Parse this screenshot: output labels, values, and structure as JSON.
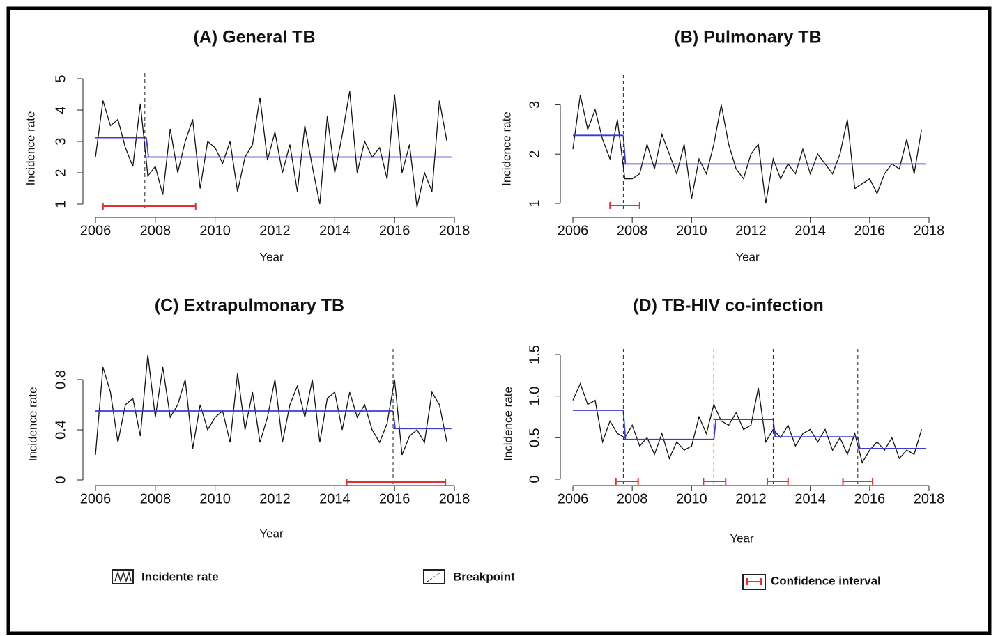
{
  "chart_data": [
    {
      "type": "line",
      "title": "(A) General TB",
      "xlabel": "Year",
      "ylabel": "Incidence rate",
      "xlim": [
        2006,
        2018
      ],
      "xticks": [
        2006,
        2008,
        2010,
        2012,
        2014,
        2016,
        2018
      ],
      "ylim": [
        1,
        5
      ],
      "yticks": [
        1,
        2,
        3,
        4,
        5
      ],
      "x": [
        2006,
        2006.25,
        2006.5,
        2006.75,
        2007,
        2007.25,
        2007.5,
        2007.75,
        2008,
        2008.25,
        2008.5,
        2008.75,
        2009,
        2009.25,
        2009.5,
        2009.75,
        2010,
        2010.25,
        2010.5,
        2010.75,
        2011,
        2011.25,
        2011.5,
        2011.75,
        2012,
        2012.25,
        2012.5,
        2012.75,
        2013,
        2013.25,
        2013.5,
        2013.75,
        2014,
        2014.25,
        2014.5,
        2014.75,
        2015,
        2015.25,
        2015.5,
        2015.75,
        2016,
        2016.25,
        2016.5,
        2016.75,
        2017,
        2017.25,
        2017.5,
        2017.75
      ],
      "series": [
        {
          "color": "#111111",
          "values": [
            2.5,
            4.3,
            3.5,
            3.7,
            2.8,
            2.2,
            4.2,
            1.9,
            2.2,
            1.3,
            3.4,
            2.0,
            3.0,
            3.7,
            1.5,
            3.0,
            2.8,
            2.3,
            3.0,
            1.4,
            2.5,
            2.9,
            4.4,
            2.4,
            3.3,
            2.0,
            2.9,
            1.4,
            3.5,
            2.2,
            1.0,
            3.8,
            2.0,
            3.2,
            4.6,
            2.0,
            3.0,
            2.5,
            2.8,
            1.8,
            4.5,
            2.0,
            2.9,
            0.9,
            2.0,
            1.4,
            4.3,
            3.0
          ]
        }
      ],
      "segments": [
        {
          "start": 2006,
          "end": 2007.7,
          "level": 3.12
        },
        {
          "start": 2007.7,
          "end": 2017.9,
          "level": 2.5
        }
      ],
      "segment_color": "#3b3bd0",
      "breakpoints": [
        2007.65
      ],
      "confidence_intervals": [
        [
          2006.25,
          2009.35
        ]
      ],
      "ci_color": "#e03030"
    },
    {
      "type": "line",
      "title": "(B) Pulmonary TB",
      "xlabel": "Year",
      "ylabel": "Incidence rate",
      "xlim": [
        2006,
        2018
      ],
      "xticks": [
        2006,
        2008,
        2010,
        2012,
        2014,
        2016,
        2018
      ],
      "ylim": [
        1,
        3.5
      ],
      "yticks": [
        1,
        2,
        3
      ],
      "x": [
        2006,
        2006.25,
        2006.5,
        2006.75,
        2007,
        2007.25,
        2007.5,
        2007.75,
        2008,
        2008.25,
        2008.5,
        2008.75,
        2009,
        2009.25,
        2009.5,
        2009.75,
        2010,
        2010.25,
        2010.5,
        2010.75,
        2011,
        2011.25,
        2011.5,
        2011.75,
        2012,
        2012.25,
        2012.5,
        2012.75,
        2013,
        2013.25,
        2013.5,
        2013.75,
        2014,
        2014.25,
        2014.5,
        2014.75,
        2015,
        2015.25,
        2015.5,
        2015.75,
        2016,
        2016.25,
        2016.5,
        2016.75,
        2017,
        2017.25,
        2017.5,
        2017.75
      ],
      "series": [
        {
          "color": "#111111",
          "values": [
            2.1,
            3.2,
            2.5,
            2.9,
            2.3,
            1.9,
            2.7,
            1.5,
            1.5,
            1.6,
            2.2,
            1.7,
            2.4,
            2.0,
            1.6,
            2.2,
            1.1,
            1.9,
            1.6,
            2.2,
            3.0,
            2.2,
            1.7,
            1.5,
            2.0,
            2.2,
            1.0,
            1.9,
            1.5,
            1.8,
            1.6,
            2.1,
            1.6,
            2.0,
            1.8,
            1.6,
            2.0,
            2.7,
            1.3,
            1.4,
            1.5,
            1.2,
            1.6,
            1.8,
            1.7,
            2.3,
            1.6,
            2.5
          ]
        }
      ],
      "segments": [
        {
          "start": 2006,
          "end": 2007.7,
          "level": 2.38
        },
        {
          "start": 2007.7,
          "end": 2017.9,
          "level": 1.8
        }
      ],
      "segment_color": "#3b3bd0",
      "breakpoints": [
        2007.7
      ],
      "confidence_intervals": [
        [
          2007.25,
          2008.25
        ]
      ],
      "ci_color": "#e03030"
    },
    {
      "type": "line",
      "title": "(C) Extrapulmonary TB",
      "xlabel": "Year",
      "ylabel": "Incidence rate",
      "xlim": [
        2006,
        2018
      ],
      "xticks": [
        2006,
        2008,
        2010,
        2012,
        2014,
        2016,
        2018
      ],
      "ylim": [
        0,
        1
      ],
      "yticks": [
        0,
        0.4,
        0.8
      ],
      "x": [
        2006,
        2006.25,
        2006.5,
        2006.75,
        2007,
        2007.25,
        2007.5,
        2007.75,
        2008,
        2008.25,
        2008.5,
        2008.75,
        2009,
        2009.25,
        2009.5,
        2009.75,
        2010,
        2010.25,
        2010.5,
        2010.75,
        2011,
        2011.25,
        2011.5,
        2011.75,
        2012,
        2012.25,
        2012.5,
        2012.75,
        2013,
        2013.25,
        2013.5,
        2013.75,
        2014,
        2014.25,
        2014.5,
        2014.75,
        2015,
        2015.25,
        2015.5,
        2015.75,
        2016,
        2016.25,
        2016.5,
        2016.75,
        2017,
        2017.25,
        2017.5,
        2017.75
      ],
      "series": [
        {
          "color": "#111111",
          "values": [
            0.2,
            0.9,
            0.7,
            0.3,
            0.6,
            0.65,
            0.35,
            1.0,
            0.5,
            0.9,
            0.5,
            0.6,
            0.8,
            0.25,
            0.6,
            0.4,
            0.5,
            0.55,
            0.3,
            0.85,
            0.4,
            0.7,
            0.3,
            0.5,
            0.8,
            0.3,
            0.6,
            0.75,
            0.5,
            0.8,
            0.3,
            0.65,
            0.7,
            0.4,
            0.7,
            0.5,
            0.6,
            0.4,
            0.3,
            0.45,
            0.8,
            0.2,
            0.35,
            0.4,
            0.3,
            0.7,
            0.6,
            0.3
          ]
        }
      ],
      "segments": [
        {
          "start": 2006,
          "end": 2015.95,
          "level": 0.55
        },
        {
          "start": 2015.95,
          "end": 2017.9,
          "level": 0.41
        }
      ],
      "segment_color": "#3b3bd0",
      "breakpoints": [
        2015.95
      ],
      "confidence_intervals": [
        [
          2014.4,
          2017.7
        ]
      ],
      "ci_color": "#e03030"
    },
    {
      "type": "line",
      "title": "(D) TB-HIV co-infection",
      "xlabel": "Year",
      "ylabel": "Incidence rate",
      "xlim": [
        2006,
        2018
      ],
      "xticks": [
        2006,
        2008,
        2010,
        2012,
        2014,
        2016,
        2018
      ],
      "ylim": [
        0,
        1.5
      ],
      "yticks": [
        0,
        0.5,
        {
          "value": 1,
          "label": "1.0"
        },
        1.5
      ],
      "x": [
        2006,
        2006.25,
        2006.5,
        2006.75,
        2007,
        2007.25,
        2007.5,
        2007.75,
        2008,
        2008.25,
        2008.5,
        2008.75,
        2009,
        2009.25,
        2009.5,
        2009.75,
        2010,
        2010.25,
        2010.5,
        2010.75,
        2011,
        2011.25,
        2011.5,
        2011.75,
        2012,
        2012.25,
        2012.5,
        2012.75,
        2013,
        2013.25,
        2013.5,
        2013.75,
        2014,
        2014.25,
        2014.5,
        2014.75,
        2015,
        2015.25,
        2015.5,
        2015.75,
        2016,
        2016.25,
        2016.5,
        2016.75,
        2017,
        2017.25,
        2017.5,
        2017.75
      ],
      "series": [
        {
          "color": "#111111",
          "values": [
            0.95,
            1.15,
            0.9,
            0.95,
            0.45,
            0.7,
            0.55,
            0.5,
            0.65,
            0.4,
            0.5,
            0.3,
            0.55,
            0.25,
            0.45,
            0.35,
            0.4,
            0.75,
            0.55,
            0.9,
            0.7,
            0.65,
            0.8,
            0.6,
            0.65,
            1.1,
            0.45,
            0.6,
            0.5,
            0.65,
            0.4,
            0.55,
            0.6,
            0.45,
            0.6,
            0.35,
            0.5,
            0.3,
            0.55,
            0.2,
            0.35,
            0.45,
            0.35,
            0.5,
            0.25,
            0.35,
            0.3,
            0.6
          ]
        }
      ],
      "segments": [
        {
          "start": 2006,
          "end": 2007.7,
          "level": 0.83
        },
        {
          "start": 2007.7,
          "end": 2010.75,
          "level": 0.48
        },
        {
          "start": 2010.75,
          "end": 2012.75,
          "level": 0.72
        },
        {
          "start": 2012.75,
          "end": 2015.6,
          "level": 0.51
        },
        {
          "start": 2015.6,
          "end": 2017.9,
          "level": 0.37
        }
      ],
      "segment_color": "#3b3bd0",
      "breakpoints": [
        2007.7,
        2010.75,
        2012.75,
        2015.6
      ],
      "confidence_intervals": [
        [
          2007.45,
          2008.2
        ],
        [
          2010.4,
          2011.15
        ],
        [
          2012.55,
          2013.25
        ],
        [
          2015.1,
          2016.1
        ]
      ],
      "ci_color": "#e03030"
    }
  ],
  "legend": {
    "items": [
      "Incidente rate",
      "Breakpoint",
      "Confidence interval"
    ]
  }
}
